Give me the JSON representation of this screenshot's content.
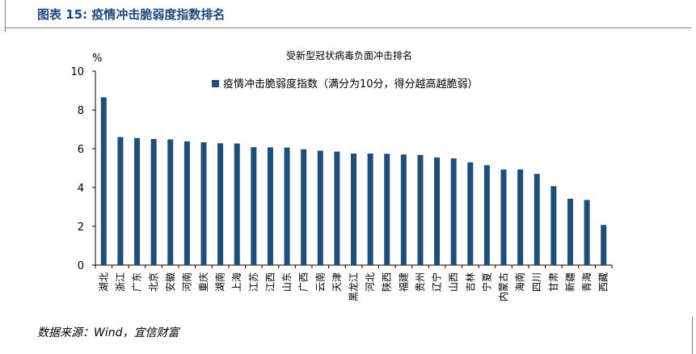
{
  "figure": {
    "title": "图表 15: 疫情冲击脆弱度指数排名",
    "source": "数据来源：Wind，宜信财富"
  },
  "colors": {
    "bar": "#1f4e79",
    "header_text": "#1f497d",
    "frame": "#7f7f7f"
  },
  "chart_data": {
    "type": "bar",
    "title": "受新型冠状病毒负面冲击排名",
    "ylabel": "%",
    "xlabel": "",
    "ylim": [
      0,
      10
    ],
    "yticks": [
      0,
      2,
      4,
      6,
      8,
      10
    ],
    "grid": false,
    "legend_position": "top",
    "categories": [
      "湖北",
      "浙江",
      "广东",
      "北京",
      "安徽",
      "河南",
      "重庆",
      "湖南",
      "上海",
      "江苏",
      "江西",
      "山东",
      "广西",
      "云南",
      "天津",
      "黑龙江",
      "河北",
      "陕西",
      "福建",
      "贵州",
      "辽宁",
      "山西",
      "吉林",
      "宁夏",
      "内蒙古",
      "海南",
      "四川",
      "甘肃",
      "新疆",
      "青海",
      "西藏"
    ],
    "series": [
      {
        "name": "疫情冲击脆弱度指数（满分为10分，得分越高越脆弱）",
        "values": [
          8.65,
          6.6,
          6.55,
          6.5,
          6.48,
          6.38,
          6.33,
          6.28,
          6.27,
          6.08,
          6.07,
          6.06,
          5.97,
          5.9,
          5.85,
          5.75,
          5.75,
          5.74,
          5.7,
          5.68,
          5.55,
          5.5,
          5.3,
          5.15,
          4.93,
          4.93,
          4.7,
          4.07,
          3.42,
          3.36,
          2.07
        ]
      }
    ]
  }
}
